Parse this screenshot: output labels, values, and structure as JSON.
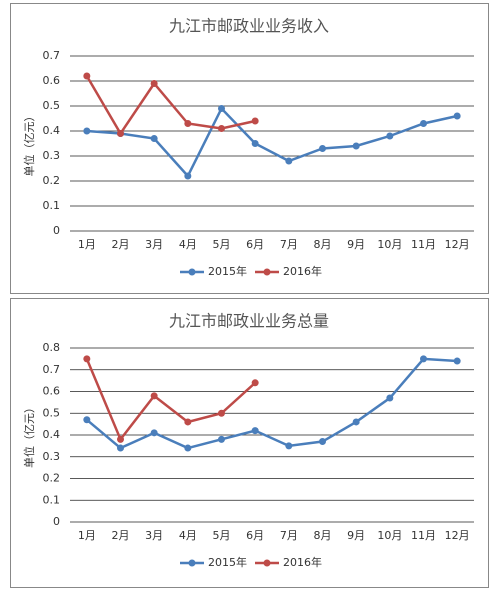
{
  "chart_data": [
    {
      "type": "line",
      "title": "九江市邮政业业务收入",
      "y_label": "单位（亿元）",
      "categories": [
        "1月",
        "2月",
        "3月",
        "4月",
        "5月",
        "6月",
        "7月",
        "8月",
        "9月",
        "10月",
        "11月",
        "12月"
      ],
      "series": [
        {
          "name": "2015年",
          "color": "#4a7ebb",
          "values": [
            0.4,
            0.39,
            0.37,
            0.22,
            0.49,
            0.35,
            0.28,
            0.33,
            0.34,
            0.38,
            0.43,
            0.46
          ]
        },
        {
          "name": "2016年",
          "color": "#be4b48",
          "values": [
            0.62,
            0.39,
            0.59,
            0.43,
            0.41,
            0.44,
            null,
            null,
            null,
            null,
            null,
            null
          ]
        }
      ],
      "ylim": [
        0,
        0.7
      ],
      "yticks": [
        0,
        0.1,
        0.2,
        0.3,
        0.4,
        0.5,
        0.6,
        0.7
      ],
      "grid": true,
      "legend": "bottom"
    },
    {
      "type": "line",
      "title": "九江市邮政业业务总量",
      "y_label": "单位（亿元）",
      "categories": [
        "1月",
        "2月",
        "3月",
        "4月",
        "5月",
        "6月",
        "7月",
        "8月",
        "9月",
        "10月",
        "11月",
        "12月"
      ],
      "series": [
        {
          "name": "2015年",
          "color": "#4a7ebb",
          "values": [
            0.47,
            0.34,
            0.41,
            0.34,
            0.38,
            0.42,
            0.35,
            0.37,
            0.46,
            0.57,
            0.75,
            0.74
          ]
        },
        {
          "name": "2016年",
          "color": "#be4b48",
          "values": [
            0.75,
            0.38,
            0.58,
            0.46,
            0.5,
            0.64,
            null,
            null,
            null,
            null,
            null,
            null
          ]
        }
      ],
      "ylim": [
        0,
        0.8
      ],
      "yticks": [
        0,
        0.1,
        0.2,
        0.3,
        0.4,
        0.5,
        0.6,
        0.7,
        0.8
      ],
      "grid": true,
      "legend": "bottom"
    }
  ]
}
